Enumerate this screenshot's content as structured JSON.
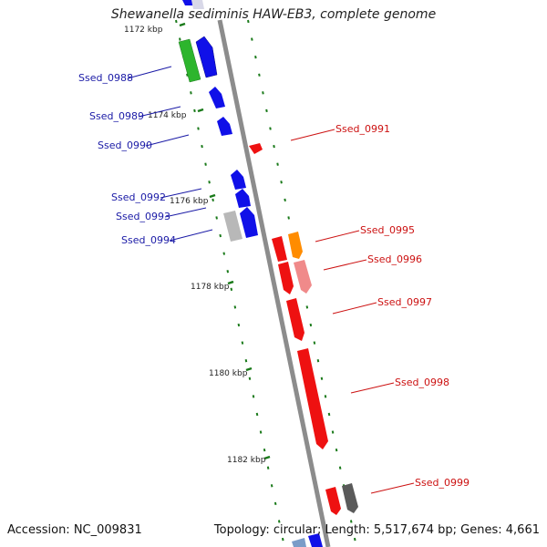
{
  "title": "Shewanella sediminis HAW-EB3, complete genome",
  "footer": {
    "accession": "Accession: NC_009831",
    "stats": "Topology: circular; Length: 5,517,674 bp; Genes: 4,661"
  },
  "colors": {
    "left_label": "#1a1aa6",
    "right_label": "#cc1111",
    "tick": "#1a7a1a",
    "backbone": "#8a8a8a"
  },
  "kbp_labels": [
    "1172 kbp",
    "1174 kbp",
    "1176 kbp",
    "1178 kbp",
    "1180 kbp",
    "1182 kbp"
  ],
  "left_genes": [
    "Ssed_0988",
    "Ssed_0989",
    "Ssed_0990",
    "Ssed_0992",
    "Ssed_0993",
    "Ssed_0994"
  ],
  "right_genes": [
    "Ssed_0991",
    "Ssed_0995",
    "Ssed_0996",
    "Ssed_0997",
    "Ssed_0998",
    "Ssed_0999"
  ]
}
